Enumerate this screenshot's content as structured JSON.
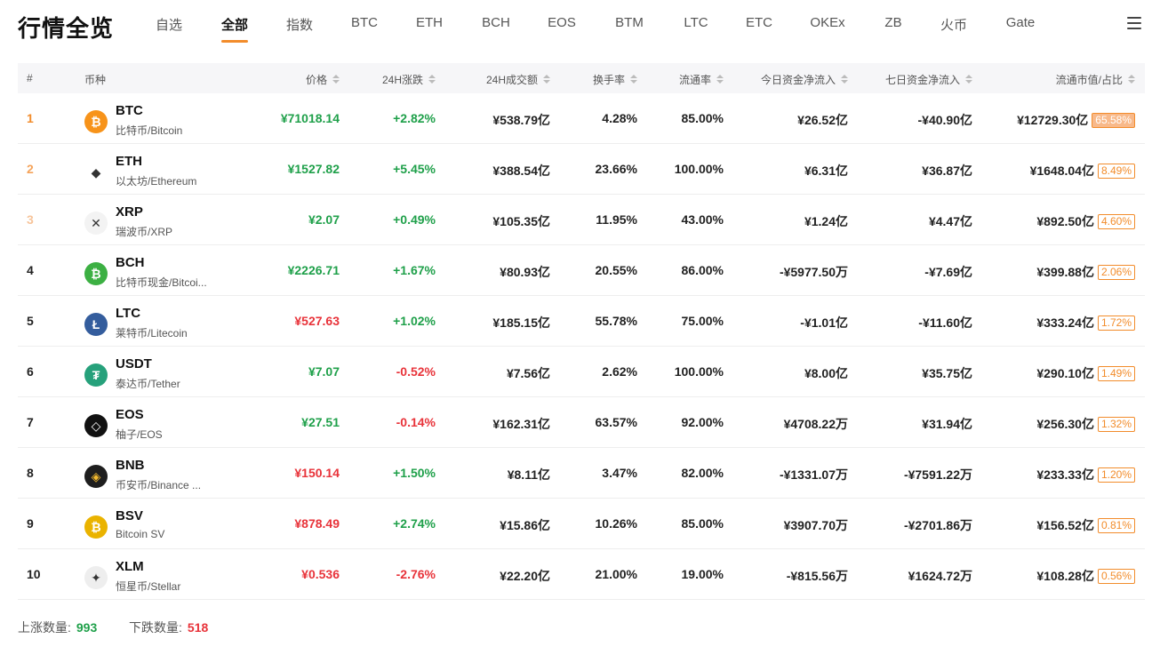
{
  "header": {
    "title": "行情全览",
    "tabs": [
      {
        "label": "自选",
        "active": false
      },
      {
        "label": "全部",
        "active": true
      },
      {
        "label": "指数",
        "active": false
      },
      {
        "label": "BTC",
        "active": false
      },
      {
        "label": "ETH",
        "active": false
      },
      {
        "label": "BCH",
        "active": false
      },
      {
        "label": "EOS",
        "active": false
      },
      {
        "label": "BTM",
        "active": false
      },
      {
        "label": "LTC",
        "active": false
      },
      {
        "label": "ETC",
        "active": false
      },
      {
        "label": "OKEx",
        "active": false
      },
      {
        "label": "ZB",
        "active": false
      },
      {
        "label": "火币",
        "active": false
      },
      {
        "label": "Gate",
        "active": false
      }
    ],
    "menu_icon": "hamburger-menu-icon"
  },
  "table": {
    "headers": {
      "rank": "#",
      "coin": "币种",
      "price": "价格",
      "change": "24H涨跌",
      "volume": "24H成交额",
      "turnover": "换手率",
      "circulation": "流通率",
      "flow_today": "今日资金净流入",
      "flow_week": "七日资金净流入",
      "market_cap": "流通市值/占比"
    },
    "rows": [
      {
        "rank": "1",
        "symbol": "BTC",
        "name": "比特币/Bitcoin",
        "icon": "bitcoin-icon",
        "icon_color": "#f7931a",
        "icon_glyph": "₿",
        "price": "¥71018.14",
        "price_dir": "up",
        "change": "+2.82%",
        "change_dir": "up",
        "volume": "¥538.79亿",
        "turnover": "4.28%",
        "circulation": "85.00%",
        "flow_today": "¥26.52亿",
        "flow_week": "-¥40.90亿",
        "market_cap": "¥12729.30亿",
        "share": "65.58%"
      },
      {
        "rank": "2",
        "symbol": "ETH",
        "name": "以太坊/Ethereum",
        "icon": "ethereum-icon",
        "icon_color": "#ffffff",
        "icon_glyph": "◆",
        "price": "¥1527.82",
        "price_dir": "up",
        "change": "+5.45%",
        "change_dir": "up",
        "volume": "¥388.54亿",
        "turnover": "23.66%",
        "circulation": "100.00%",
        "flow_today": "¥6.31亿",
        "flow_week": "¥36.87亿",
        "market_cap": "¥1648.04亿",
        "share": "8.49%"
      },
      {
        "rank": "3",
        "symbol": "XRP",
        "name": "瑞波币/XRP",
        "icon": "xrp-icon",
        "icon_color": "#f3f3f3",
        "icon_glyph": "✕",
        "price": "¥2.07",
        "price_dir": "up",
        "change": "+0.49%",
        "change_dir": "up",
        "volume": "¥105.35亿",
        "turnover": "11.95%",
        "circulation": "43.00%",
        "flow_today": "¥1.24亿",
        "flow_week": "¥4.47亿",
        "market_cap": "¥892.50亿",
        "share": "4.60%"
      },
      {
        "rank": "4",
        "symbol": "BCH",
        "name": "比特币现金/Bitcoi...",
        "icon": "bitcoin-cash-icon",
        "icon_color": "#3cb043",
        "icon_glyph": "₿",
        "price": "¥2226.71",
        "price_dir": "up",
        "change": "+1.67%",
        "change_dir": "up",
        "volume": "¥80.93亿",
        "turnover": "20.55%",
        "circulation": "86.00%",
        "flow_today": "-¥5977.50万",
        "flow_week": "-¥7.69亿",
        "market_cap": "¥399.88亿",
        "share": "2.06%"
      },
      {
        "rank": "5",
        "symbol": "LTC",
        "name": "莱特币/Litecoin",
        "icon": "litecoin-icon",
        "icon_color": "#345d9d",
        "icon_glyph": "Ł",
        "price": "¥527.63",
        "price_dir": "down",
        "change": "+1.02%",
        "change_dir": "up",
        "volume": "¥185.15亿",
        "turnover": "55.78%",
        "circulation": "75.00%",
        "flow_today": "-¥1.01亿",
        "flow_week": "-¥11.60亿",
        "market_cap": "¥333.24亿",
        "share": "1.72%"
      },
      {
        "rank": "6",
        "symbol": "USDT",
        "name": "泰达币/Tether",
        "icon": "tether-icon",
        "icon_color": "#26a17b",
        "icon_glyph": "₮",
        "price": "¥7.07",
        "price_dir": "up",
        "change": "-0.52%",
        "change_dir": "down",
        "volume": "¥7.56亿",
        "turnover": "2.62%",
        "circulation": "100.00%",
        "flow_today": "¥8.00亿",
        "flow_week": "¥35.75亿",
        "market_cap": "¥290.10亿",
        "share": "1.49%"
      },
      {
        "rank": "7",
        "symbol": "EOS",
        "name": "柚子/EOS",
        "icon": "eos-icon",
        "icon_color": "#111111",
        "icon_glyph": "◇",
        "price": "¥27.51",
        "price_dir": "up",
        "change": "-0.14%",
        "change_dir": "down",
        "volume": "¥162.31亿",
        "turnover": "63.57%",
        "circulation": "92.00%",
        "flow_today": "¥4708.22万",
        "flow_week": "¥31.94亿",
        "market_cap": "¥256.30亿",
        "share": "1.32%"
      },
      {
        "rank": "8",
        "symbol": "BNB",
        "name": "币安币/Binance ...",
        "icon": "binance-icon",
        "icon_color": "#1e1e1e",
        "icon_glyph": "◈",
        "price": "¥150.14",
        "price_dir": "down",
        "change": "+1.50%",
        "change_dir": "up",
        "volume": "¥8.11亿",
        "turnover": "3.47%",
        "circulation": "82.00%",
        "flow_today": "-¥1331.07万",
        "flow_week": "-¥7591.22万",
        "market_cap": "¥233.33亿",
        "share": "1.20%"
      },
      {
        "rank": "9",
        "symbol": "BSV",
        "name": "Bitcoin SV",
        "icon": "bitcoin-sv-icon",
        "icon_color": "#eab300",
        "icon_glyph": "₿",
        "price": "¥878.49",
        "price_dir": "down",
        "change": "+2.74%",
        "change_dir": "up",
        "volume": "¥15.86亿",
        "turnover": "10.26%",
        "circulation": "85.00%",
        "flow_today": "¥3907.70万",
        "flow_week": "-¥2701.86万",
        "market_cap": "¥156.52亿",
        "share": "0.81%"
      },
      {
        "rank": "10",
        "symbol": "XLM",
        "name": "恒星币/Stellar",
        "icon": "stellar-icon",
        "icon_color": "#eeeeee",
        "icon_glyph": "✦",
        "price": "¥0.536",
        "price_dir": "down",
        "change": "-2.76%",
        "change_dir": "down",
        "volume": "¥22.20亿",
        "turnover": "21.00%",
        "circulation": "19.00%",
        "flow_today": "-¥815.56万",
        "flow_week": "¥1624.72万",
        "market_cap": "¥108.28亿",
        "share": "0.56%"
      }
    ]
  },
  "footer": {
    "up_label": "上涨数量:",
    "up_count": "993",
    "down_label": "下跌数量:",
    "down_count": "518"
  },
  "colors": {
    "up": "#1fa04a",
    "down": "#e8333a",
    "accent": "#f28c2b"
  }
}
